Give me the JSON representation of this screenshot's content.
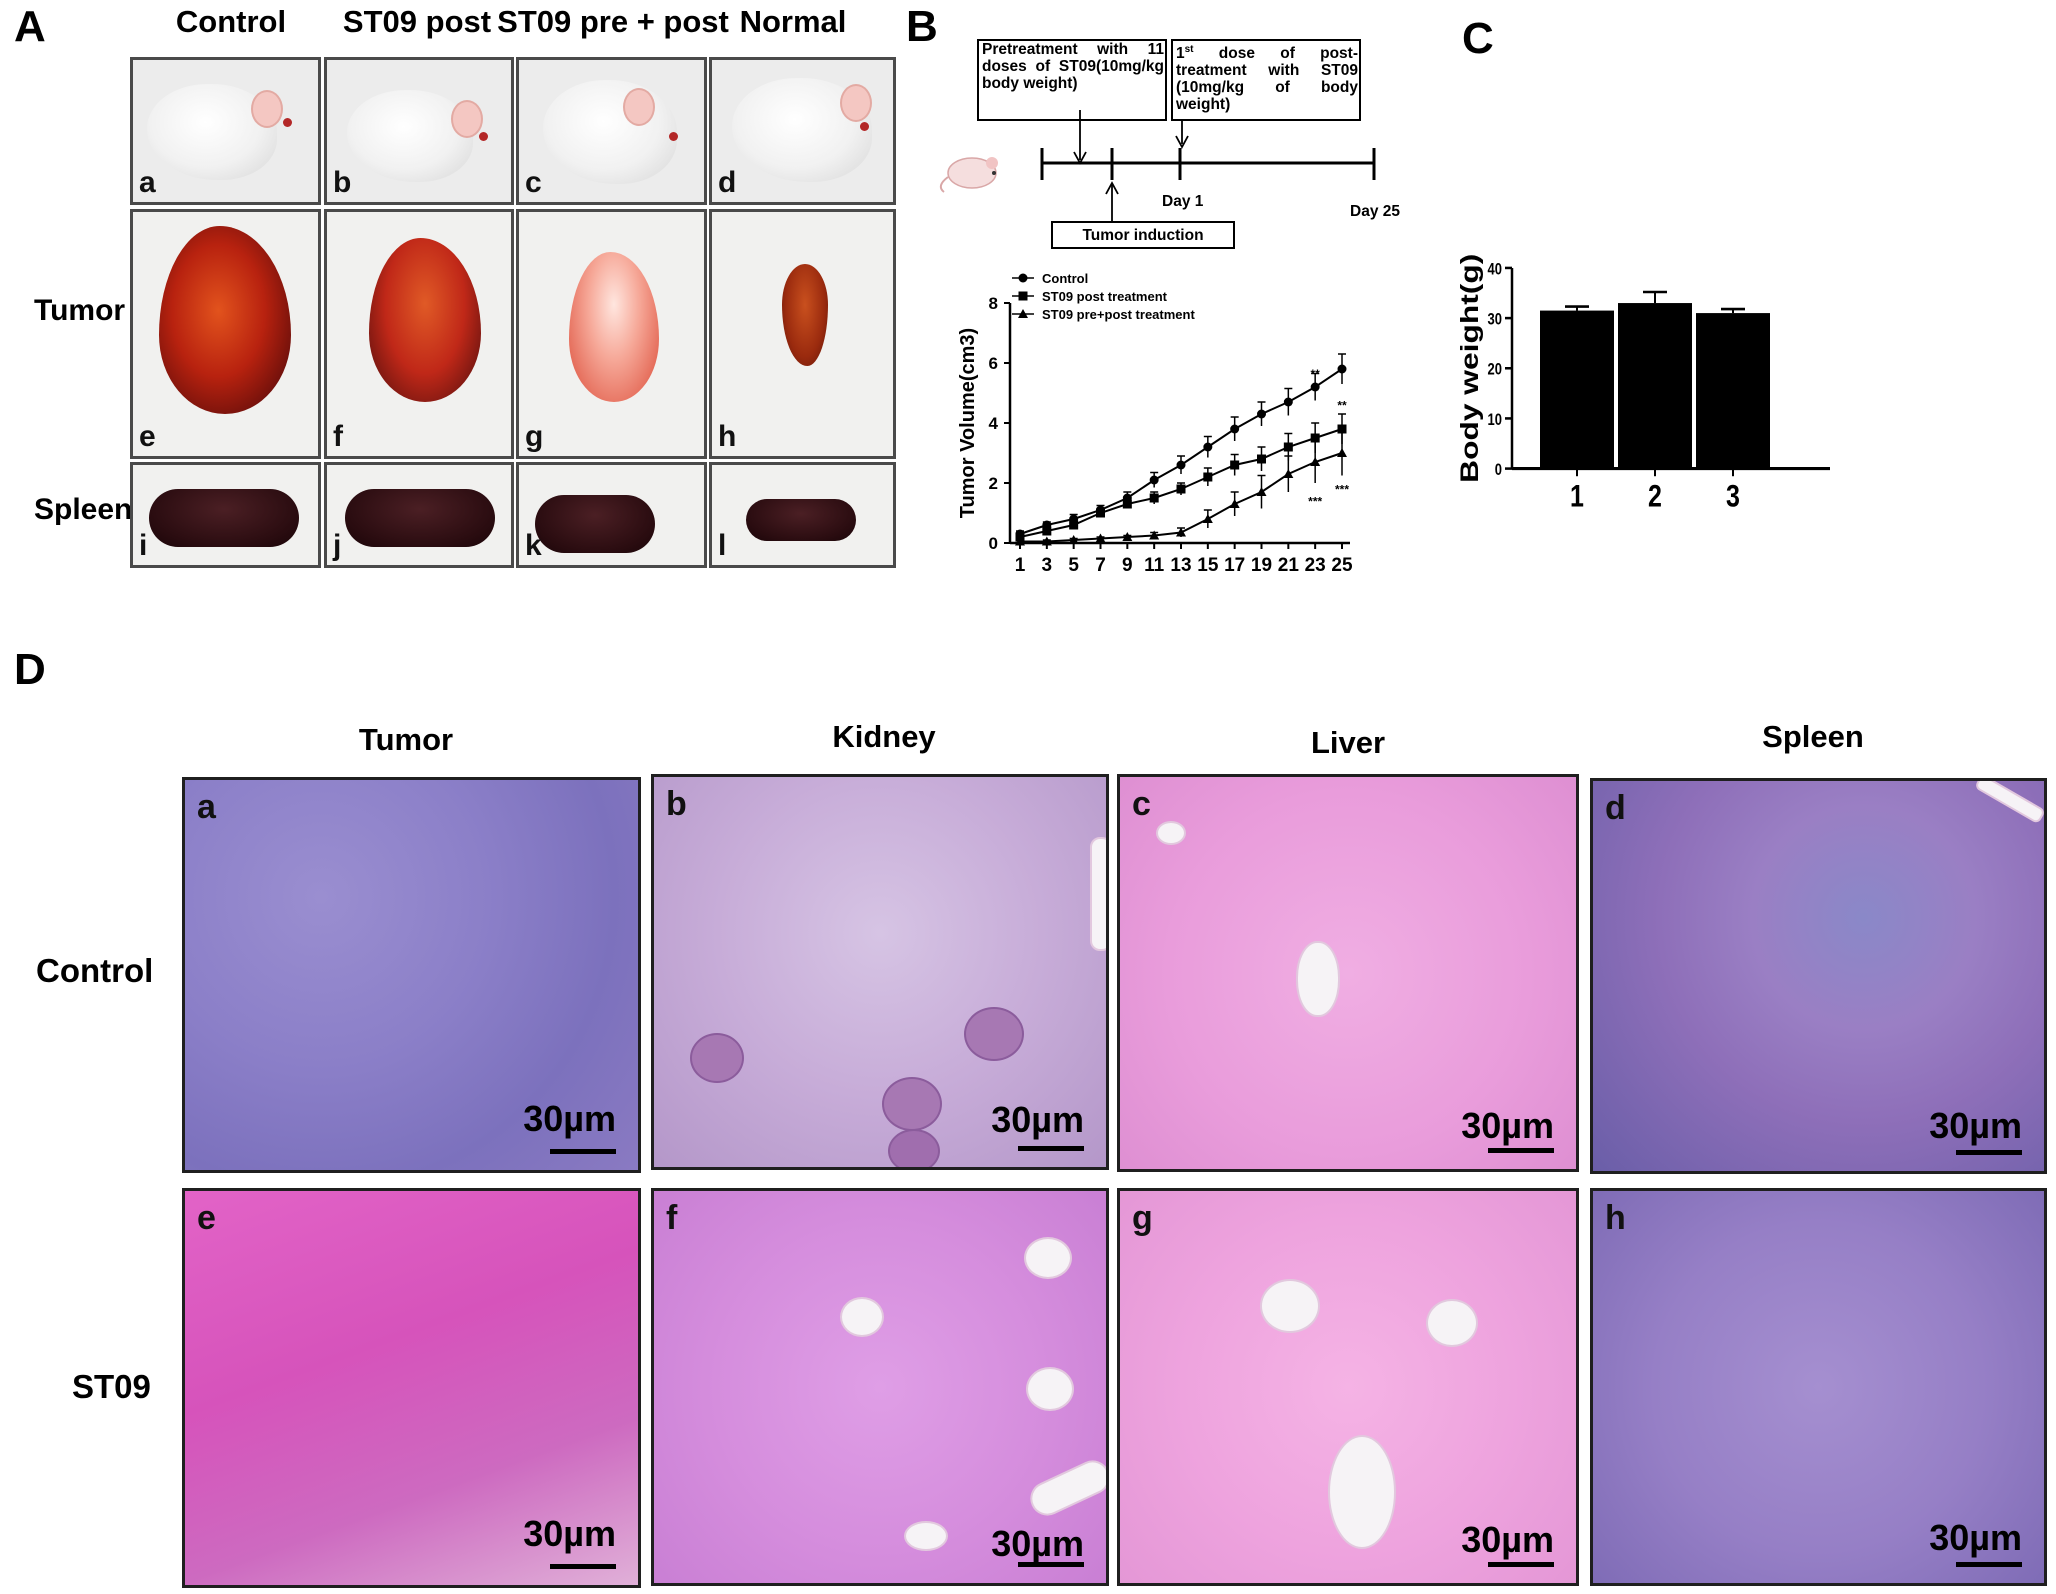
{
  "panel_letters": {
    "a": "A",
    "b": "B",
    "c": "C",
    "d": "D"
  },
  "panelA": {
    "columns": [
      "Control",
      "ST09 post",
      "ST09 pre + post",
      "Normal"
    ],
    "rows": [
      "Tumor",
      "Spleen"
    ],
    "sublabels": [
      "a",
      "b",
      "c",
      "d",
      "e",
      "f",
      "g",
      "h",
      "i",
      "j",
      "k",
      "l"
    ]
  },
  "panelB": {
    "timeline": {
      "box1": "Pretreatment with 11 doses of ST09(10mg/kg body weight)",
      "box2_sup": "st",
      "box2_pre": "1",
      "box2": "dose of post-treatment with ST09 (10mg/kg of body weight)",
      "day1": "Day 1",
      "day25": "Day 25",
      "tumor_induction": "Tumor induction"
    }
  },
  "chart_data": [
    {
      "type": "line",
      "xlabel": "",
      "ylabel": "Tumor Volume(cm3)",
      "x": [
        1,
        3,
        5,
        7,
        9,
        11,
        13,
        15,
        17,
        19,
        21,
        23,
        25
      ],
      "ylim": [
        0,
        8
      ],
      "yticks": [
        0,
        2,
        4,
        6,
        8
      ],
      "series": [
        {
          "name": "Control",
          "marker": "circle",
          "values": [
            0.3,
            0.6,
            0.8,
            1.1,
            1.5,
            2.1,
            2.6,
            3.2,
            3.8,
            4.3,
            4.7,
            5.2,
            5.8
          ],
          "errors": [
            0.1,
            0.1,
            0.15,
            0.15,
            0.2,
            0.25,
            0.3,
            0.35,
            0.4,
            0.4,
            0.45,
            0.45,
            0.5
          ]
        },
        {
          "name": "ST09 post treatment",
          "marker": "square",
          "values": [
            0.2,
            0.4,
            0.6,
            1.0,
            1.3,
            1.5,
            1.8,
            2.2,
            2.6,
            2.8,
            3.2,
            3.5,
            3.8
          ],
          "errors": [
            0.1,
            0.1,
            0.1,
            0.15,
            0.15,
            0.2,
            0.2,
            0.3,
            0.35,
            0.4,
            0.45,
            0.5,
            0.5
          ]
        },
        {
          "name": "ST09 pre+post treatment",
          "marker": "triangle",
          "values": [
            0.05,
            0.05,
            0.1,
            0.15,
            0.2,
            0.25,
            0.35,
            0.8,
            1.3,
            1.7,
            2.3,
            2.7,
            3.0
          ],
          "errors": [
            0.05,
            0.05,
            0.05,
            0.05,
            0.05,
            0.1,
            0.15,
            0.3,
            0.4,
            0.55,
            0.6,
            0.7,
            0.75
          ]
        }
      ],
      "annotations": [
        {
          "text": "**",
          "x": 23,
          "y": 5.5
        },
        {
          "text": "**",
          "x": 25,
          "y": 4.45
        },
        {
          "text": "***",
          "x": 23,
          "y": 1.25
        },
        {
          "text": "***",
          "x": 25,
          "y": 1.65
        }
      ],
      "grid": false
    },
    {
      "type": "bar",
      "xlabel": "",
      "ylabel": "Body weight(g)",
      "categories": [
        "1",
        "2",
        "3"
      ],
      "values": [
        31.5,
        33,
        31
      ],
      "errors": [
        0.8,
        2.2,
        0.8
      ],
      "ylim": [
        0,
        40
      ],
      "yticks": [
        0,
        10,
        20,
        30,
        40
      ],
      "grid": false
    }
  ],
  "panelD": {
    "columns": [
      "Tumor",
      "Kidney",
      "Liver",
      "Spleen"
    ],
    "rows": [
      "Control",
      "ST09"
    ],
    "sublabels": [
      "a",
      "b",
      "c",
      "d",
      "e",
      "f",
      "g",
      "h"
    ],
    "scalebar": "30µm"
  }
}
